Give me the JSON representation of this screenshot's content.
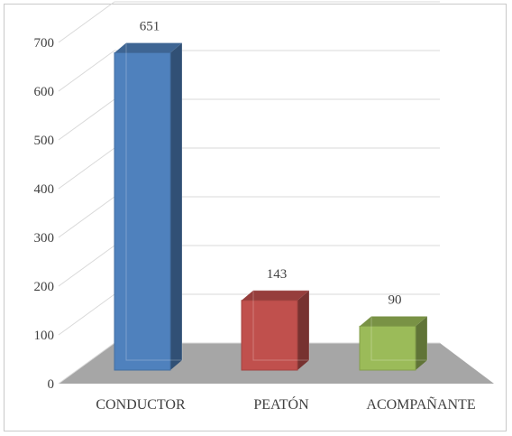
{
  "chart_data": {
    "type": "bar",
    "style": "3d-column",
    "categories": [
      "CONDUCTOR",
      "PEATÓN",
      "ACOMPAÑANTE"
    ],
    "values": [
      651,
      143,
      90
    ],
    "data_labels": [
      "651",
      "143",
      "90"
    ],
    "colors": [
      "#4f81bd",
      "#c0504d",
      "#9bbb59"
    ],
    "ylim": [
      0,
      700
    ],
    "yticks": [
      0,
      100,
      200,
      300,
      400,
      500,
      600,
      700
    ],
    "ytick_labels": [
      "0",
      "100",
      "200",
      "300",
      "400",
      "500",
      "600",
      "700"
    ],
    "grid": true,
    "legend": false,
    "title": "",
    "xlabel": "",
    "ylabel": ""
  }
}
